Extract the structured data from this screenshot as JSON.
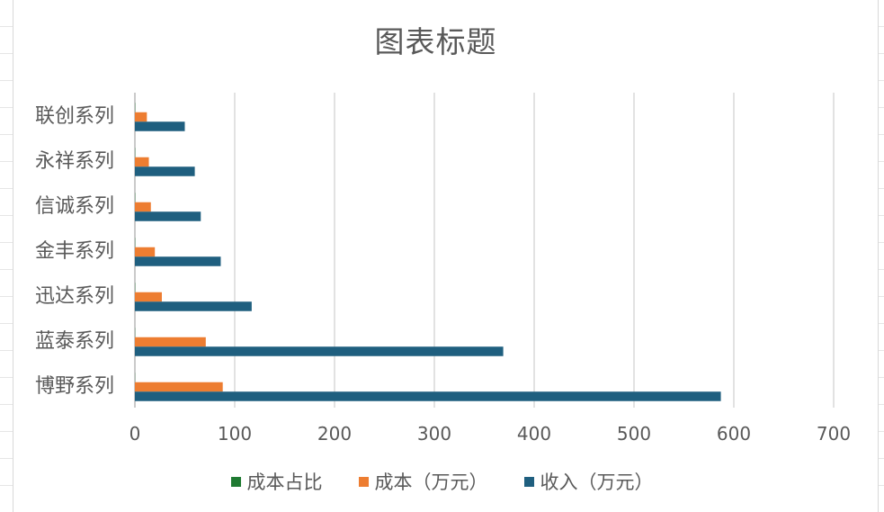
{
  "chart_data": {
    "type": "bar",
    "orientation": "horizontal",
    "title": "图表标题",
    "categories": [
      "联创系列",
      "永祥系列",
      "信诚系列",
      "金丰系列",
      "迅达系列",
      "蓝泰系列",
      "博野系列"
    ],
    "series": [
      {
        "name": "成本占比",
        "color": "#1f7a32",
        "values": [
          0.24,
          0.24,
          0.24,
          0.24,
          0.24,
          0.19,
          0.15
        ]
      },
      {
        "name": "成本（万元）",
        "color": "#ed7d31",
        "values": [
          12,
          14,
          16,
          20,
          27,
          71,
          88
        ]
      },
      {
        "name": "收入（万元）",
        "color": "#1f5f7f",
        "values": [
          50,
          60,
          66,
          86,
          117,
          369,
          587
        ]
      }
    ],
    "xlim": [
      0,
      700
    ],
    "xticks": [
      0,
      100,
      200,
      300,
      400,
      500,
      600,
      700
    ],
    "grid": "vertical",
    "legend": "bottom"
  }
}
